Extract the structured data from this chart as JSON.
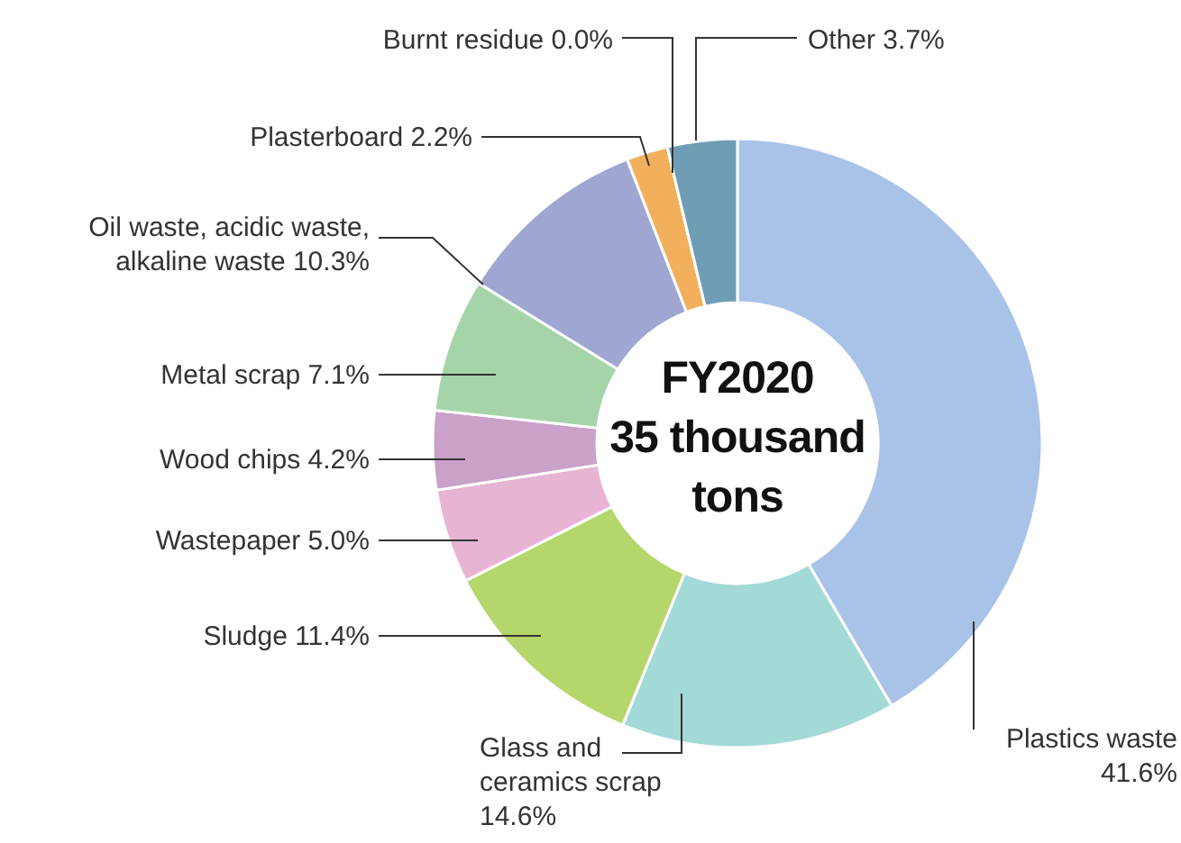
{
  "chart_data": {
    "type": "donut",
    "title": "FY2020 35 thousand tons",
    "categories": [
      "Plastics waste",
      "Glass and ceramics scrap",
      "Sludge",
      "Wastepaper",
      "Wood chips",
      "Metal scrap",
      "Oil waste, acidic waste, alkaline waste",
      "Plasterboard",
      "Burnt residue",
      "Other"
    ],
    "values": [
      41.6,
      14.6,
      11.4,
      5.0,
      4.2,
      7.1,
      10.3,
      2.2,
      0.0,
      3.7
    ],
    "value_labels": [
      "41.6%",
      "14.6%",
      "11.4%",
      "5.0%",
      "4.2%",
      "7.1%",
      "10.3%",
      "2.2%",
      "0.0%",
      "3.7%"
    ],
    "colors": [
      "#a9c3e8",
      "#a3d9d6",
      "#b5d66a",
      "#e7b4d3",
      "#c9a1c9",
      "#a5d4a8",
      "#9fa6d1",
      "#f2b05c",
      "#8a8a8a",
      "#6f9db5"
    ]
  }
}
